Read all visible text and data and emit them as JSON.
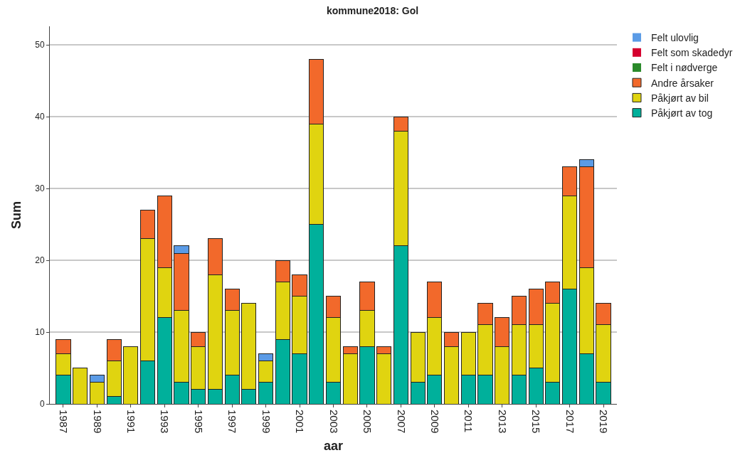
{
  "chart_data": {
    "type": "bar",
    "title": "kommune2018: Gol",
    "xlabel": "aar",
    "ylabel": "Sum",
    "categories": [
      "1987",
      null,
      "1989",
      null,
      "1991",
      null,
      "1993",
      null,
      "1995",
      null,
      "1997",
      null,
      "1999",
      null,
      "2001",
      null,
      "2003",
      null,
      "2005",
      null,
      "2007",
      null,
      "2009",
      null,
      "2011",
      null,
      "2013",
      null,
      "2015",
      null,
      "2017",
      null,
      "2019"
    ],
    "stacked": true,
    "ylim": [
      0,
      52.6
    ],
    "yticks": [
      0,
      10,
      20,
      30,
      40,
      50
    ],
    "grid": "y",
    "legend": "top right",
    "series": [
      {
        "name": "Påkjørt av tog",
        "color": "#00b09b",
        "values": [
          4,
          0,
          0,
          1,
          0,
          6,
          12,
          3,
          2,
          2,
          4,
          2,
          3,
          9,
          7,
          25,
          3,
          0,
          8,
          0,
          22,
          3,
          4,
          0,
          4,
          4,
          0,
          4,
          5,
          3,
          16,
          7,
          3
        ]
      },
      {
        "name": "Påkjørt av bil",
        "color": "#e0d410",
        "values": [
          3,
          5,
          3,
          5,
          8,
          17,
          7,
          10,
          6,
          16,
          9,
          12,
          3,
          8,
          8,
          14,
          9,
          7,
          5,
          7,
          16,
          7,
          8,
          8,
          6,
          7,
          8,
          7,
          6,
          11,
          13,
          12,
          8
        ]
      },
      {
        "name": "Andre årsaker",
        "color": "#f2692b",
        "values": [
          2,
          0,
          0,
          3,
          0,
          4,
          10,
          8,
          2,
          5,
          3,
          0,
          0,
          3,
          3,
          9,
          3,
          1,
          4,
          1,
          2,
          0,
          5,
          2,
          0,
          3,
          4,
          4,
          5,
          3,
          4,
          14,
          3
        ]
      },
      {
        "name": "Felt i nødverge",
        "color": "#2a8a2a",
        "values": [
          0,
          0,
          0,
          0,
          0,
          0,
          0,
          0,
          0,
          0,
          0,
          0,
          0,
          0,
          0,
          0,
          0,
          0,
          0,
          0,
          0,
          0,
          0,
          0,
          0,
          0,
          0,
          0,
          0,
          0,
          0,
          0,
          0
        ]
      },
      {
        "name": "Felt som skadedyr",
        "color": "#d5002e",
        "values": [
          0,
          0,
          0,
          0,
          0,
          0,
          0,
          0,
          0,
          0,
          0,
          0,
          0,
          0,
          0,
          0,
          0,
          0,
          0,
          0,
          0,
          0,
          0,
          0,
          0,
          0,
          0,
          0,
          0,
          0,
          0,
          0,
          0
        ]
      },
      {
        "name": "Felt ulovlig",
        "color": "#5b9be6",
        "values": [
          0,
          0,
          1,
          0,
          0,
          0,
          0,
          1,
          0,
          0,
          0,
          0,
          1,
          0,
          0,
          0,
          0,
          0,
          0,
          0,
          0,
          0,
          0,
          0,
          0,
          0,
          0,
          0,
          0,
          0,
          0,
          1,
          0
        ]
      }
    ]
  }
}
